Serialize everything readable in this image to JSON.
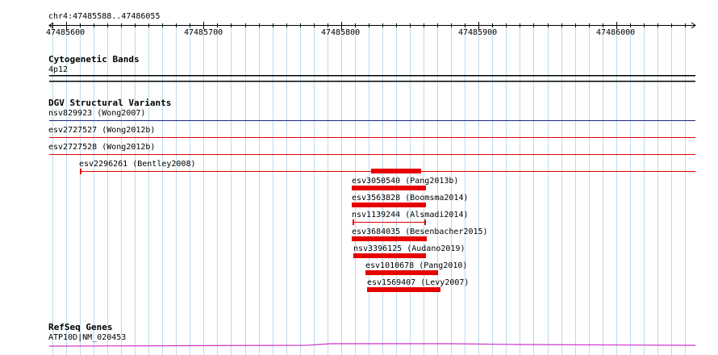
{
  "ruler": {
    "region": "chr4:47485588..47486055",
    "ticks": [
      {
        "value": 47485600,
        "label": "47485600"
      },
      {
        "value": 47485700,
        "label": "47485700"
      },
      {
        "value": 47485800,
        "label": "47485800"
      },
      {
        "value": 47485900,
        "label": "47485900"
      },
      {
        "value": 47486000,
        "label": "47486000"
      }
    ],
    "start": 47485588,
    "end": 47486055
  },
  "tracks": {
    "cytobands": {
      "title": "Cytogenetic Bands",
      "band_label": "4p12"
    },
    "dgv": {
      "title": "DGV Structural Variants",
      "variants": [
        {
          "label": "nsv829923 (Wong2007)",
          "color": "#1f2a7a"
        },
        {
          "label": "esv2727527 (Wong2012b)",
          "color": "#e60000"
        },
        {
          "label": "esv2727528 (Wong2012b)",
          "color": "#e60000"
        },
        {
          "label": "esv2296261 (Bentley2008)",
          "color": "#e60000"
        },
        {
          "label": "esv3050540 (Pang2013b)",
          "color": "#e60000"
        },
        {
          "label": "esv3563828 (Boomsma2014)",
          "color": "#e60000"
        },
        {
          "label": "nsv1139244 (Alsmadi2014)",
          "color": "#e60000"
        },
        {
          "label": "esv3684035 (Besenbacher2015)",
          "color": "#e60000"
        },
        {
          "label": "nsv3396125 (Audano2019)",
          "color": "#e60000"
        },
        {
          "label": "esv1010678 (Pang2010)",
          "color": "#e60000"
        },
        {
          "label": "esv1569407 (Levy2007)",
          "color": "#e60000"
        }
      ]
    },
    "refseq": {
      "title": "RefSeq Genes",
      "gene_label": "ATP10D|NM_020453",
      "color": "#cc33cc"
    }
  }
}
